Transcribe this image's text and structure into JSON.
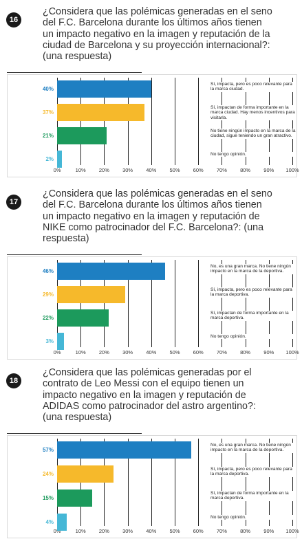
{
  "chart_data": [
    {
      "type": "bar",
      "orientation": "horizontal",
      "number": "16",
      "title": "¿Considera que las polémicas generadas en el seno del F.C. Barcelona durante los últimos años tienen un impacto negativo en la imagen y reputación de la ciudad de Barcelona y su proyección internacional?: (una respuesta)",
      "categories": [
        "Sí, impacta, pero es poco relevante para la marca ciudad.",
        "Sí, impactan de forma importante en la marca ciudad. Hay menos incentivos para visitarla.",
        "No tiene ningún impacto en la marca de la ciudad, sigue teniendo un gran atractivo.",
        "No tengo opinión."
      ],
      "values": [
        40,
        37,
        21,
        2
      ],
      "value_labels": [
        "40%",
        "37%",
        "21%",
        "2%"
      ],
      "colors": [
        "#1e7fc2",
        "#f6b92b",
        "#1c9a5c",
        "#45b7d6"
      ],
      "xlim": [
        0,
        100
      ],
      "xticks": [
        {
          "value": 0,
          "label": "0%"
        },
        {
          "value": 10,
          "label": "10%"
        },
        {
          "value": 20,
          "label": "20%"
        },
        {
          "value": 30,
          "label": "30%"
        },
        {
          "value": 40,
          "label": "40%"
        },
        {
          "value": 50,
          "label": "50%"
        },
        {
          "value": 60,
          "label": "60%"
        },
        {
          "value": 70,
          "label": "70%"
        },
        {
          "value": 80,
          "label": "80%"
        },
        {
          "value": 90,
          "label": "90%"
        },
        {
          "value": 100,
          "label": "100%"
        }
      ],
      "grid": true
    },
    {
      "type": "bar",
      "orientation": "horizontal",
      "number": "17",
      "title": "¿Considera que las polémicas generadas en el seno del F.C. Barcelona durante los últimos años tienen un impacto negativo en la imagen y reputación de NIKE como patrocinador del F.C. Barcelona?: (una respuesta)",
      "categories": [
        "No, es una gran marca. No tiene ningún impacto en la marca de la deportiva.",
        "Sí, impacta, pero es poco relevante para la marca deportiva.",
        "Sí, impactan de forma importante en la marca deportiva.",
        "No tengo opinión."
      ],
      "values": [
        46,
        29,
        22,
        3
      ],
      "value_labels": [
        "46%",
        "29%",
        "22%",
        "3%"
      ],
      "colors": [
        "#1e7fc2",
        "#f6b92b",
        "#1c9a5c",
        "#45b7d6"
      ],
      "xlim": [
        0,
        100
      ],
      "xticks": [
        {
          "value": 0,
          "label": "0%"
        },
        {
          "value": 10,
          "label": "10%"
        },
        {
          "value": 20,
          "label": "20%"
        },
        {
          "value": 30,
          "label": "30%"
        },
        {
          "value": 40,
          "label": "40%"
        },
        {
          "value": 50,
          "label": "50%"
        },
        {
          "value": 60,
          "label": "60%"
        },
        {
          "value": 70,
          "label": "70%"
        },
        {
          "value": 80,
          "label": "80%"
        },
        {
          "value": 90,
          "label": "90%"
        },
        {
          "value": 100,
          "label": "100%"
        }
      ],
      "grid": true
    },
    {
      "type": "bar",
      "orientation": "horizontal",
      "number": "18",
      "title": "¿Considera que las polémicas generadas por el contrato de Leo Messi con el equipo tienen un impacto negativo en la imagen y reputación de ADIDAS como patrocinador del astro argentino?: (una respuesta)",
      "categories": [
        "No, es una gran marca. No tiene ningún impacto en la marca de la deportiva.",
        "Sí, impacta, pero es poco relevante para la marca deportiva.",
        "Sí, impactan de forma importante en la marca deportiva.",
        "No tengo opinión."
      ],
      "values": [
        57,
        24,
        15,
        4
      ],
      "value_labels": [
        "57%",
        "24%",
        "15%",
        "4%"
      ],
      "colors": [
        "#1e7fc2",
        "#f6b92b",
        "#1c9a5c",
        "#45b7d6"
      ],
      "xlim": [
        0,
        100
      ],
      "xticks": [
        {
          "value": 0,
          "label": "0%"
        },
        {
          "value": 10,
          "label": "10%"
        },
        {
          "value": 20,
          "label": "20%"
        },
        {
          "value": 30,
          "label": "30%"
        },
        {
          "value": 40,
          "label": "40%"
        },
        {
          "value": 50,
          "label": "50%"
        },
        {
          "value": 60,
          "label": "60%"
        },
        {
          "value": 70,
          "label": "70%"
        },
        {
          "value": 80,
          "label": "80%"
        },
        {
          "value": 90,
          "label": "90%"
        },
        {
          "value": 100,
          "label": "100%"
        }
      ],
      "grid": true
    }
  ]
}
